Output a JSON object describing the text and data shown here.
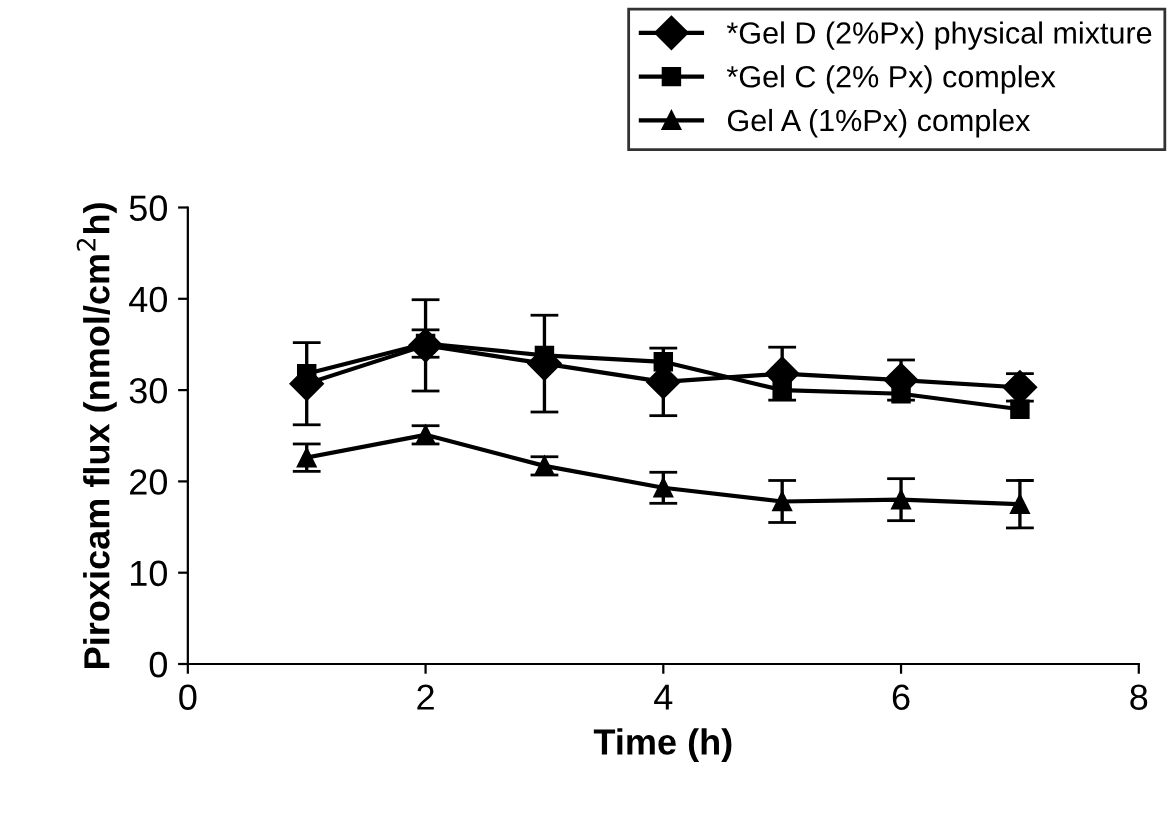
{
  "chart_data": {
    "type": "line",
    "xlabel": "Time (h)",
    "ylabel": "Piroxicam flux (nmol/cm$^{2}$h)",
    "x": [
      1,
      2,
      3,
      4,
      5,
      6,
      7
    ],
    "series": [
      {
        "name": "*Gel D (2%Px) physical mixture",
        "color": "#000000",
        "marker": "diamond",
        "values": [
          30.7,
          34.9,
          32.9,
          30.9,
          31.8,
          31.1,
          30.3
        ],
        "errors": [
          4.5,
          5,
          5.3,
          3.7,
          2.9,
          2.2,
          1.5
        ]
      },
      {
        "name": "*Gel C (2% Px) complex",
        "color": "#000000",
        "marker": "square",
        "values": [
          31.8,
          35.1,
          33.8,
          33.1,
          30.0,
          29.6,
          27.9
        ],
        "errors": [
          null,
          1.5,
          null,
          null,
          null,
          null,
          null
        ]
      },
      {
        "name": "Gel A (1%Px) complex",
        "color": "#000000",
        "marker": "triangle",
        "values": [
          22.6,
          25.1,
          21.7,
          19.3,
          17.8,
          18.0,
          17.5
        ],
        "errors": [
          1.5,
          1,
          1,
          1.7,
          2.3,
          2.3,
          2.6
        ]
      }
    ],
    "xlim": [
      0,
      8
    ],
    "xticks": [
      0,
      2,
      4,
      6,
      8
    ],
    "ylim": [
      0,
      50
    ],
    "yticks": [
      0,
      10,
      20,
      30,
      40,
      50
    ],
    "grid": false,
    "legend": "top right"
  }
}
